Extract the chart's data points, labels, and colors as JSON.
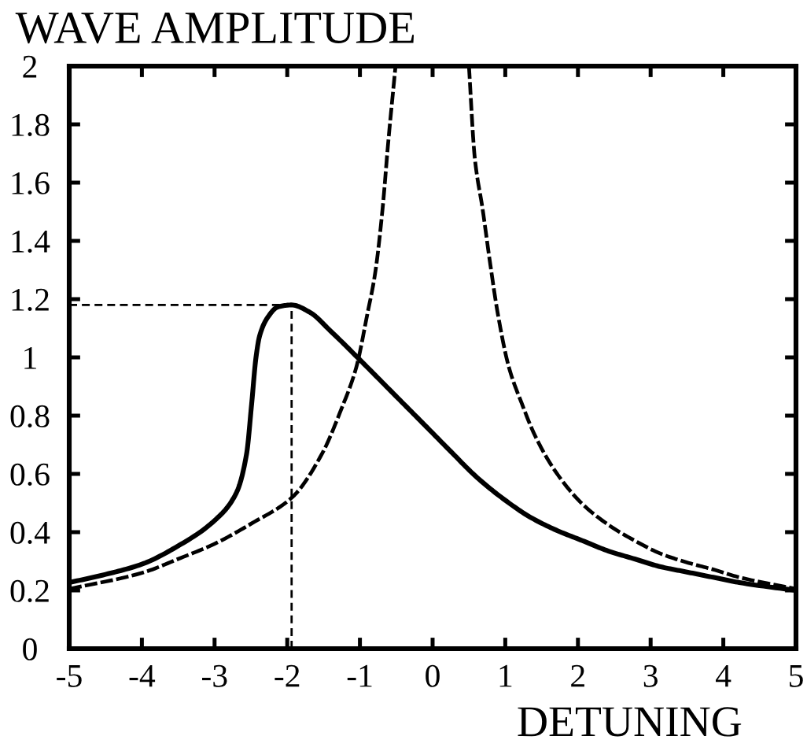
{
  "chart_data": {
    "type": "line",
    "xlabel": "DETUNING",
    "ylabel": "WAVE AMPLITUDE",
    "xlim": [
      -5,
      5
    ],
    "ylim": [
      0,
      2
    ],
    "xticks": [
      -5,
      -4,
      -3,
      -2,
      -1,
      0,
      1,
      2,
      3,
      4,
      5
    ],
    "yticks": [
      0,
      0.2,
      0.4,
      0.6,
      0.8,
      1,
      1.2,
      1.4,
      1.6,
      1.8,
      2
    ],
    "series": [
      {
        "color": "#000000",
        "line_style": "solid",
        "x": [
          -5,
          -4.5,
          -4,
          -3.5,
          -3,
          -2.7,
          -2.56,
          -2.49,
          -2.43,
          -2.38,
          -2.27,
          -2.13,
          -1.94,
          -1.69,
          -1.41,
          -0.97,
          -0.54,
          -0.11,
          0.25,
          0.61,
          0.97,
          1.34,
          1.7,
          2.06,
          2.42,
          2.78,
          3.14,
          3.5,
          3.86,
          4.22,
          5
        ],
        "values": [
          0.227,
          0.255,
          0.29,
          0.353,
          0.44,
          0.535,
          0.668,
          0.84,
          1.0,
          1.074,
          1.137,
          1.173,
          1.18,
          1.155,
          1.092,
          0.984,
          0.876,
          0.768,
          0.677,
          0.588,
          0.515,
          0.452,
          0.407,
          0.371,
          0.335,
          0.308,
          0.281,
          0.263,
          0.245,
          0.227,
          0.2
        ]
      },
      {
        "color": "#000000",
        "line_style": "dashed",
        "x": [
          -5,
          -4,
          -3.5,
          -3,
          -2.49,
          -1.93,
          -1.52,
          -1.26,
          -1.05,
          -0.9,
          -0.79,
          -0.69,
          -0.61,
          -0.51,
          0,
          0.5,
          0.58,
          0.69,
          0.79,
          0.9,
          1.05,
          1.23,
          1.41,
          1.7,
          2.06,
          2.42,
          2.78,
          3.14,
          3.5,
          3.86,
          4.22,
          5
        ],
        "values": [
          0.205,
          0.26,
          0.308,
          0.36,
          0.43,
          0.52,
          0.67,
          0.82,
          0.966,
          1.146,
          1.29,
          1.506,
          1.74,
          2.0,
          null,
          2.0,
          1.686,
          1.506,
          1.326,
          1.146,
          0.966,
          0.84,
          0.731,
          0.605,
          0.497,
          0.425,
          0.371,
          0.326,
          0.296,
          0.272,
          0.245,
          0.205
        ]
      }
    ],
    "ref_lines": [
      {
        "axis": "y",
        "value": 1.18,
        "color": "#000000",
        "line_style": "dashed"
      },
      {
        "axis": "x",
        "value": -1.94,
        "color": "#000000",
        "line_style": "dashed"
      }
    ]
  }
}
